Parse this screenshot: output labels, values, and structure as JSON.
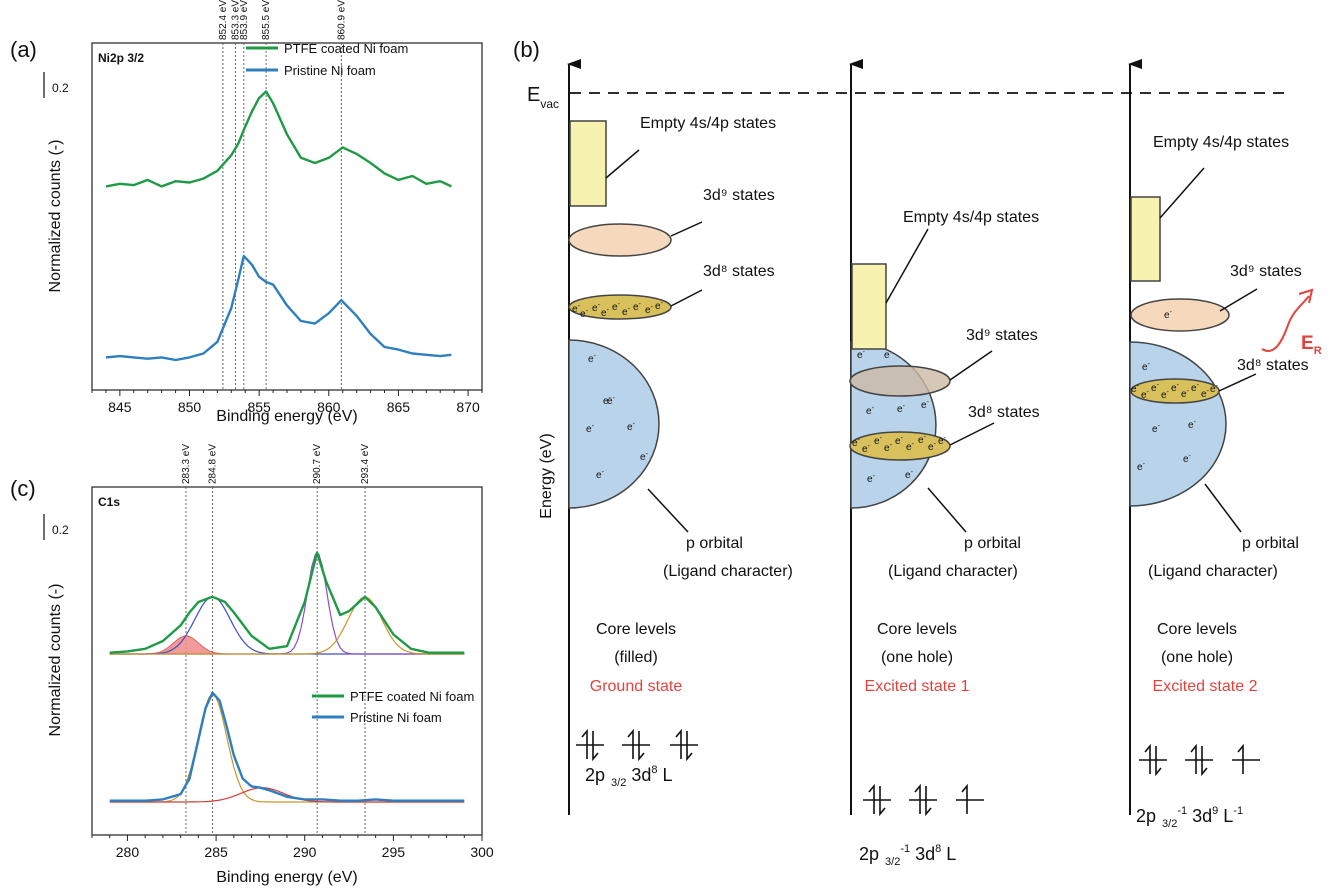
{
  "panels": {
    "a": "(a)",
    "b": "(b)",
    "c": "(c)"
  },
  "colors": {
    "ptfe": "#1f9a46",
    "pristine": "#2e7fc0",
    "red_label": "#e0443c",
    "blue_fill": "#b8d3ea",
    "yellow_fill": "#d8c05c",
    "peach_fill": "#f6d9bd",
    "pale_yellow": "#f7f2b0"
  },
  "chart_data": [
    {
      "type": "line",
      "panel": "a",
      "title": "Ni2p 3/2",
      "xlabel": "Binding energy (eV)",
      "ylabel": "Normalized counts (-)",
      "xlim": [
        843,
        871
      ],
      "xticks": [
        845,
        850,
        855,
        860,
        865,
        870
      ],
      "scale_bar": "0.2",
      "legend_placement": "top-right",
      "reference_lines": [
        852.4,
        853.3,
        853.9,
        855.5,
        860.9
      ],
      "reference_labels": [
        "852.4 eV",
        "853.3 eV",
        "853.9 eV",
        "855.5 eV",
        "860.9 eV"
      ],
      "series": [
        {
          "name": "PTFE coated Ni foam",
          "x": [
            844,
            845,
            846,
            847,
            848,
            849,
            850,
            851,
            852,
            853,
            853.5,
            854,
            854.5,
            855,
            855.5,
            856,
            857,
            858,
            859,
            860,
            861,
            862,
            863,
            864,
            865,
            866,
            867,
            868,
            868.8
          ],
          "y": [
            1.22,
            1.24,
            1.23,
            1.27,
            1.22,
            1.26,
            1.25,
            1.28,
            1.34,
            1.46,
            1.55,
            1.68,
            1.8,
            1.9,
            1.95,
            1.86,
            1.62,
            1.44,
            1.4,
            1.44,
            1.52,
            1.47,
            1.4,
            1.32,
            1.27,
            1.3,
            1.24,
            1.26,
            1.22
          ]
        },
        {
          "name": "Pristine Ni foam",
          "x": [
            844,
            845,
            846,
            847,
            848,
            849,
            850,
            851,
            852,
            853,
            853.5,
            853.9,
            854.5,
            855,
            855.5,
            856,
            857,
            858,
            859,
            860,
            860.9,
            862,
            863,
            864,
            865,
            866,
            867,
            868,
            868.8
          ],
          "y": [
            0.02,
            0.03,
            0.02,
            0.01,
            0.02,
            0.0,
            0.02,
            0.05,
            0.14,
            0.4,
            0.62,
            0.8,
            0.73,
            0.64,
            0.6,
            0.58,
            0.42,
            0.3,
            0.28,
            0.36,
            0.46,
            0.34,
            0.2,
            0.1,
            0.08,
            0.05,
            0.04,
            0.03,
            0.04
          ]
        }
      ]
    },
    {
      "type": "line",
      "panel": "c",
      "title": "C1s",
      "xlabel": "Binding energy (eV)",
      "ylabel": "Normalized counts (-)",
      "xlim": [
        278,
        300
      ],
      "xticks": [
        280,
        285,
        290,
        295,
        300
      ],
      "scale_bar": "0.2",
      "legend_placement": "center-right",
      "reference_lines": [
        283.3,
        284.8,
        290.7,
        293.4
      ],
      "reference_labels": [
        "283.3 eV",
        "284.8 eV",
        "290.7 eV",
        "293.4 eV"
      ],
      "series": [
        {
          "name": "PTFE coated Ni foam",
          "x": [
            279,
            280,
            281,
            282,
            283,
            283.5,
            284,
            284.8,
            285.5,
            286,
            287,
            288,
            289,
            290,
            290.7,
            291.2,
            292,
            292.5,
            293.4,
            294,
            295,
            296,
            297,
            298,
            299
          ],
          "y": [
            1.01,
            1.02,
            1.04,
            1.1,
            1.22,
            1.32,
            1.4,
            1.44,
            1.4,
            1.32,
            1.14,
            1.04,
            1.06,
            1.4,
            1.78,
            1.56,
            1.3,
            1.33,
            1.44,
            1.36,
            1.15,
            1.04,
            1.01,
            1.01,
            1.01
          ]
        },
        {
          "name": "Pristine Ni foam",
          "x": [
            279,
            280,
            281,
            282,
            283,
            283.5,
            284,
            284.4,
            284.8,
            285.2,
            285.6,
            286,
            286.5,
            287,
            287.5,
            288,
            289,
            290,
            291,
            292,
            293,
            294,
            295,
            296,
            297,
            298,
            299
          ],
          "y": [
            0.01,
            0.01,
            0.01,
            0.02,
            0.06,
            0.18,
            0.48,
            0.72,
            0.84,
            0.78,
            0.58,
            0.36,
            0.18,
            0.12,
            0.11,
            0.09,
            0.04,
            0.02,
            0.02,
            0.01,
            0.01,
            0.02,
            0.01,
            0.01,
            0.01,
            0.01,
            0.01
          ]
        }
      ]
    }
  ],
  "diagram": {
    "evac": "E",
    "evac_sub": "vac",
    "energy_axis": "Energy (eV)",
    "columns": [
      {
        "empty_states": "Empty 4s/4p states",
        "d9": "3d⁹ states",
        "d8": "3d⁸ states",
        "p_orbital_1": "p orbital",
        "p_orbital_2": "(Ligand character)",
        "core_1": "Core levels",
        "core_2": "(filled)",
        "state": "Ground state",
        "config": "2p",
        "config_sub": "3/2",
        "config_rest": " 3d",
        "config_sup": "8",
        "config_tail": " L",
        "electron": "e"
      },
      {
        "empty_states": "Empty 4s/4p states",
        "d9": "3d⁹ states",
        "d8": "3d⁸ states",
        "p_orbital_1": "p orbital",
        "p_orbital_2": "(Ligand character)",
        "core_1": "Core levels",
        "core_2": "(one hole)",
        "state": "Excited state 1",
        "config": "2p",
        "config_sub": "3/2",
        "config_sup1": "-1",
        "config_rest": " 3d",
        "config_sup": "8",
        "config_tail": " L"
      },
      {
        "empty_states": "Empty 4s/4p states",
        "d9": "3d⁹ states",
        "d8": "3d⁸ states",
        "p_orbital_1": "p orbital",
        "p_orbital_2": "(Ligand character)",
        "core_1": "Core levels",
        "core_2": "(one hole)",
        "state": "Excited state 2",
        "config": "2p",
        "config_sub": "3/2",
        "config_sup1": "-1",
        "config_rest": " 3d",
        "config_sup": "9",
        "config_tail": " L",
        "config_sup2": "-1",
        "er": "E",
        "er_sub": "R"
      }
    ]
  }
}
